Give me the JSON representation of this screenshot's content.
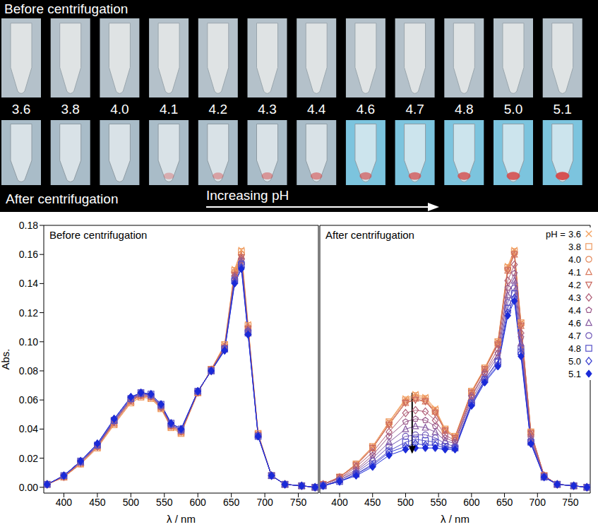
{
  "photo": {
    "top_label": "Before centrifugation",
    "bottom_label": "After centrifugation",
    "arrow_label": "Increasing pH",
    "tube_labels": [
      "3.6",
      "3.8",
      "4.0",
      "4.1",
      "4.2",
      "4.3",
      "4.4",
      "4.6",
      "4.7",
      "4.8",
      "5.0",
      "5.1"
    ]
  },
  "chart_data": [
    {
      "type": "line",
      "title": "Before centrifugation",
      "xlabel": "λ / nm",
      "ylabel": "Abs.",
      "x": [
        375,
        400,
        425,
        450,
        475,
        500,
        515,
        530,
        545,
        560,
        575,
        600,
        620,
        640,
        655,
        665,
        675,
        690,
        710,
        730,
        755,
        775
      ],
      "xlim": [
        370,
        780
      ],
      "xticks": [
        400,
        450,
        500,
        550,
        600,
        650,
        700,
        750
      ],
      "ylim": [
        -0.004,
        0.18
      ],
      "yticks": [
        {
          "value": 0,
          "label": "0.00"
        },
        {
          "value": 0.02,
          "label": "0.02"
        },
        {
          "value": 0.04,
          "label": "0.04"
        },
        {
          "value": 0.06,
          "label": "0.06"
        },
        {
          "value": 0.08,
          "label": "0.08"
        },
        {
          "value": 0.1,
          "label": "0.10"
        },
        {
          "value": 0.12,
          "label": "0.12"
        },
        {
          "value": 0.14,
          "label": "0.14"
        },
        {
          "value": 0.16,
          "label": "0.16"
        },
        {
          "value": 0.18,
          "label": "0.18"
        }
      ],
      "grid": false,
      "series": [
        {
          "name": "3.6",
          "color": "#f4a15d",
          "marker": "x",
          "values": [
            0.002,
            0.007,
            0.016,
            0.027,
            0.043,
            0.058,
            0.062,
            0.061,
            0.054,
            0.041,
            0.037,
            0.065,
            0.081,
            0.098,
            0.15,
            0.163,
            0.112,
            0.037,
            0.008,
            0.002,
            0.001,
            0
          ]
        },
        {
          "name": "3.8",
          "color": "#ee9a60",
          "marker": "square",
          "values": [
            0.002,
            0.007,
            0.016,
            0.027,
            0.043,
            0.058,
            0.062,
            0.061,
            0.054,
            0.041,
            0.037,
            0.065,
            0.081,
            0.098,
            0.149,
            0.162,
            0.111,
            0.037,
            0.008,
            0.002,
            0.001,
            0
          ]
        },
        {
          "name": "4.0",
          "color": "#e48a5c",
          "marker": "circle",
          "values": [
            0.002,
            0.007,
            0.016,
            0.028,
            0.044,
            0.059,
            0.063,
            0.062,
            0.055,
            0.042,
            0.038,
            0.065,
            0.081,
            0.097,
            0.148,
            0.16,
            0.11,
            0.036,
            0.008,
            0.002,
            0.001,
            0
          ]
        },
        {
          "name": "4.1",
          "color": "#d9785c",
          "marker": "triangle_up",
          "values": [
            0.002,
            0.007,
            0.017,
            0.028,
            0.044,
            0.059,
            0.063,
            0.062,
            0.055,
            0.042,
            0.038,
            0.065,
            0.081,
            0.097,
            0.147,
            0.159,
            0.11,
            0.036,
            0.008,
            0.002,
            0.001,
            0
          ]
        },
        {
          "name": "4.2",
          "color": "#c8675e",
          "marker": "triangle_down",
          "values": [
            0.002,
            0.007,
            0.017,
            0.028,
            0.045,
            0.06,
            0.063,
            0.062,
            0.055,
            0.042,
            0.038,
            0.065,
            0.081,
            0.096,
            0.146,
            0.158,
            0.109,
            0.036,
            0.008,
            0.002,
            0.001,
            0
          ]
        },
        {
          "name": "4.3",
          "color": "#b05f78",
          "marker": "diamond",
          "values": [
            0.002,
            0.008,
            0.017,
            0.028,
            0.045,
            0.06,
            0.064,
            0.063,
            0.055,
            0.043,
            0.039,
            0.066,
            0.08,
            0.096,
            0.145,
            0.157,
            0.108,
            0.036,
            0.008,
            0.002,
            0.001,
            0
          ]
        },
        {
          "name": "4.4",
          "color": "#9a5a8a",
          "marker": "pentagon",
          "values": [
            0.002,
            0.008,
            0.017,
            0.029,
            0.045,
            0.06,
            0.064,
            0.063,
            0.056,
            0.043,
            0.039,
            0.066,
            0.08,
            0.096,
            0.145,
            0.156,
            0.108,
            0.036,
            0.008,
            0.002,
            0.001,
            0
          ]
        },
        {
          "name": "4.6",
          "color": "#8558a0",
          "marker": "triangle_up",
          "values": [
            0.002,
            0.008,
            0.017,
            0.029,
            0.046,
            0.061,
            0.064,
            0.063,
            0.056,
            0.043,
            0.039,
            0.066,
            0.08,
            0.095,
            0.144,
            0.155,
            0.107,
            0.036,
            0.008,
            0.002,
            0.001,
            0
          ]
        },
        {
          "name": "4.7",
          "color": "#7058b8",
          "marker": "circle",
          "values": [
            0.002,
            0.008,
            0.018,
            0.029,
            0.046,
            0.061,
            0.065,
            0.063,
            0.056,
            0.043,
            0.039,
            0.066,
            0.08,
            0.095,
            0.143,
            0.154,
            0.107,
            0.035,
            0.008,
            0.002,
            0.001,
            0
          ]
        },
        {
          "name": "4.8",
          "color": "#5550c8",
          "marker": "square",
          "values": [
            0.002,
            0.008,
            0.018,
            0.029,
            0.046,
            0.061,
            0.065,
            0.064,
            0.057,
            0.044,
            0.04,
            0.066,
            0.08,
            0.095,
            0.142,
            0.153,
            0.106,
            0.035,
            0.008,
            0.002,
            0.001,
            0
          ]
        },
        {
          "name": "5.0",
          "color": "#3a40d0",
          "marker": "diamond",
          "values": [
            0.002,
            0.008,
            0.018,
            0.03,
            0.047,
            0.062,
            0.065,
            0.064,
            0.057,
            0.044,
            0.04,
            0.066,
            0.08,
            0.094,
            0.141,
            0.151,
            0.105,
            0.035,
            0.008,
            0.002,
            0.001,
            0
          ]
        },
        {
          "name": "5.1",
          "color": "#1a2ad8",
          "marker": "filled_diamond",
          "values": [
            0.002,
            0.008,
            0.018,
            0.03,
            0.047,
            0.062,
            0.065,
            0.064,
            0.057,
            0.044,
            0.04,
            0.066,
            0.08,
            0.094,
            0.14,
            0.15,
            0.105,
            0.035,
            0.008,
            0.002,
            0.001,
            0
          ]
        }
      ]
    },
    {
      "type": "line",
      "title": "After centrifugation",
      "xlabel": "λ / nm",
      "tick_labels": "x",
      "x": [
        375,
        400,
        425,
        450,
        475,
        500,
        515,
        530,
        545,
        560,
        575,
        600,
        620,
        640,
        655,
        665,
        675,
        690,
        710,
        730,
        755,
        775
      ],
      "xlim": [
        370,
        780
      ],
      "xticks": [
        400,
        450,
        500,
        550,
        600,
        650,
        700,
        750
      ],
      "ylim": [
        -0.004,
        0.18
      ],
      "yticks": [
        {
          "value": 0,
          "label": "0.00"
        },
        {
          "value": 0.02,
          "label": "0.02"
        },
        {
          "value": 0.04,
          "label": "0.04"
        },
        {
          "value": 0.06,
          "label": "0.06"
        },
        {
          "value": 0.08,
          "label": "0.08"
        },
        {
          "value": 0.1,
          "label": "0.10"
        },
        {
          "value": 0.12,
          "label": "0.12"
        },
        {
          "value": 0.14,
          "label": "0.14"
        },
        {
          "value": 0.16,
          "label": "0.16"
        },
        {
          "value": 0.18,
          "label": "0.18"
        }
      ],
      "grid": false,
      "legend": "top-right",
      "legend_title": "pH =",
      "arrow": {
        "x": 510,
        "y_from": 0.065,
        "y_to": 0.024
      },
      "series": [
        {
          "name": "3.6",
          "color": "#f4a15d",
          "marker": "x",
          "values": [
            0.002,
            0.007,
            0.016,
            0.028,
            0.045,
            0.061,
            0.064,
            0.062,
            0.054,
            0.04,
            0.035,
            0.066,
            0.082,
            0.1,
            0.152,
            0.163,
            0.113,
            0.038,
            0.008,
            0.002,
            0.001,
            0
          ]
        },
        {
          "name": "3.8",
          "color": "#ee9a60",
          "marker": "square",
          "values": [
            0.002,
            0.007,
            0.016,
            0.028,
            0.045,
            0.06,
            0.063,
            0.061,
            0.053,
            0.04,
            0.035,
            0.066,
            0.082,
            0.1,
            0.151,
            0.162,
            0.113,
            0.038,
            0.008,
            0.002,
            0.001,
            0
          ]
        },
        {
          "name": "4.0",
          "color": "#e48a5c",
          "marker": "circle",
          "values": [
            0.002,
            0.007,
            0.016,
            0.027,
            0.044,
            0.059,
            0.062,
            0.06,
            0.052,
            0.039,
            0.034,
            0.065,
            0.081,
            0.099,
            0.15,
            0.161,
            0.112,
            0.038,
            0.008,
            0.002,
            0.001,
            0
          ]
        },
        {
          "name": "4.1",
          "color": "#d9785c",
          "marker": "triangle_up",
          "values": [
            0.002,
            0.007,
            0.015,
            0.027,
            0.043,
            0.058,
            0.061,
            0.059,
            0.052,
            0.039,
            0.034,
            0.065,
            0.081,
            0.099,
            0.149,
            0.16,
            0.111,
            0.037,
            0.008,
            0.002,
            0.001,
            0
          ]
        },
        {
          "name": "4.2",
          "color": "#c8675e",
          "marker": "triangle_down",
          "values": [
            0.002,
            0.007,
            0.015,
            0.027,
            0.043,
            0.058,
            0.06,
            0.059,
            0.051,
            0.039,
            0.034,
            0.065,
            0.081,
            0.098,
            0.149,
            0.16,
            0.111,
            0.037,
            0.008,
            0.002,
            0.001,
            0
          ]
        },
        {
          "name": "4.3",
          "color": "#b05f78",
          "marker": "diamond",
          "values": [
            0.002,
            0.006,
            0.014,
            0.024,
            0.038,
            0.051,
            0.053,
            0.052,
            0.046,
            0.036,
            0.032,
            0.063,
            0.079,
            0.095,
            0.142,
            0.153,
            0.106,
            0.036,
            0.008,
            0.002,
            0.001,
            0
          ]
        },
        {
          "name": "4.4",
          "color": "#9a5a8a",
          "marker": "pentagon",
          "values": [
            0.002,
            0.006,
            0.012,
            0.022,
            0.035,
            0.045,
            0.047,
            0.046,
            0.042,
            0.034,
            0.031,
            0.062,
            0.078,
            0.092,
            0.137,
            0.147,
            0.103,
            0.034,
            0.008,
            0.002,
            0.001,
            0
          ]
        },
        {
          "name": "4.6",
          "color": "#8558a0",
          "marker": "triangle_up",
          "values": [
            0.001,
            0.005,
            0.011,
            0.02,
            0.031,
            0.04,
            0.042,
            0.041,
            0.038,
            0.032,
            0.03,
            0.06,
            0.076,
            0.09,
            0.132,
            0.142,
            0.099,
            0.033,
            0.007,
            0.002,
            0.001,
            0
          ]
        },
        {
          "name": "4.7",
          "color": "#7058b8",
          "marker": "circle",
          "values": [
            0.001,
            0.005,
            0.01,
            0.018,
            0.028,
            0.035,
            0.036,
            0.036,
            0.034,
            0.03,
            0.028,
            0.058,
            0.074,
            0.087,
            0.127,
            0.137,
            0.096,
            0.032,
            0.007,
            0.002,
            0.001,
            0
          ]
        },
        {
          "name": "4.8",
          "color": "#5550c8",
          "marker": "square",
          "values": [
            0.001,
            0.004,
            0.009,
            0.016,
            0.025,
            0.031,
            0.033,
            0.032,
            0.031,
            0.028,
            0.027,
            0.058,
            0.074,
            0.086,
            0.123,
            0.133,
            0.093,
            0.031,
            0.007,
            0.002,
            0.001,
            0
          ]
        },
        {
          "name": "5.0",
          "color": "#3a40d0",
          "marker": "diamond",
          "values": [
            0.001,
            0.004,
            0.009,
            0.015,
            0.024,
            0.028,
            0.03,
            0.029,
            0.029,
            0.027,
            0.027,
            0.057,
            0.073,
            0.084,
            0.12,
            0.13,
            0.092,
            0.03,
            0.007,
            0.002,
            0.001,
            0
          ]
        },
        {
          "name": "5.1",
          "color": "#1a2ad8",
          "marker": "filled_diamond",
          "values": [
            0.001,
            0.004,
            0.008,
            0.014,
            0.022,
            0.026,
            0.027,
            0.027,
            0.027,
            0.026,
            0.026,
            0.056,
            0.072,
            0.083,
            0.118,
            0.128,
            0.09,
            0.03,
            0.007,
            0.002,
            0.001,
            0
          ]
        }
      ]
    }
  ]
}
